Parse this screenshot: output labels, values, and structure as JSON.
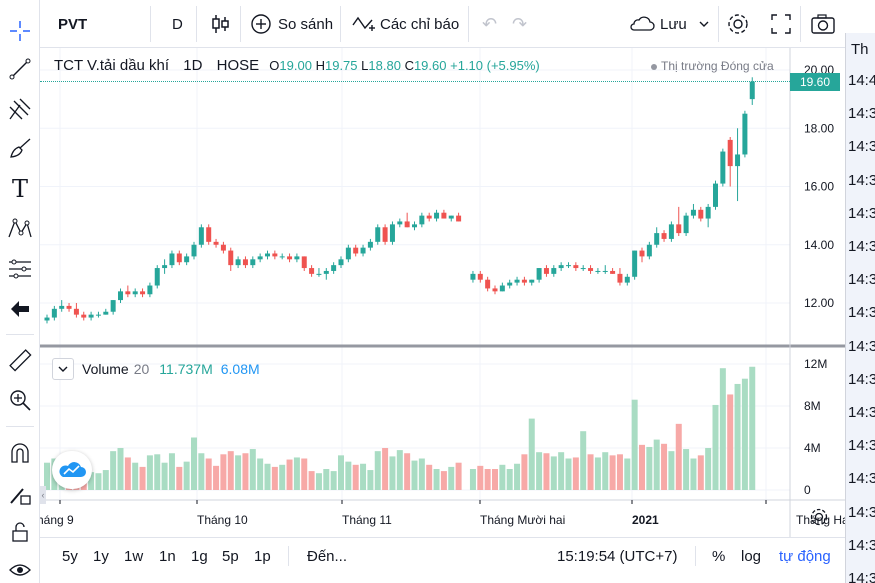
{
  "toolbar": {
    "symbol": "PVT",
    "interval": "D",
    "compare_label": "So sánh",
    "indicators_label": "Các chỉ báo",
    "save_label": "Lưu"
  },
  "legend": {
    "name": "TCT V.tải dầu khí",
    "interval": "1D",
    "exchange": "HOSE",
    "open_label": "O",
    "open": "19.00",
    "high_label": "H",
    "high": "19.75",
    "low_label": "L",
    "low": "18.80",
    "close_label": "C",
    "close": "19.60",
    "change": "+1.10 (+5.95%)",
    "market_status": "Thị trường Đóng cửa"
  },
  "volume_legend": {
    "label": "Volume",
    "length": "20",
    "value": "11.737M",
    "ma": "6.08M"
  },
  "last_price_label": "19.60",
  "price_axis": [
    "20.00",
    "18.00",
    "16.00",
    "14.00",
    "12.00"
  ],
  "volume_axis": [
    "12M",
    "8M",
    "4M",
    "0"
  ],
  "time_axis": [
    "háng 9",
    "Tháng 10",
    "Tháng 11",
    "Tháng Mười hai",
    "2021",
    "Tháng Hai"
  ],
  "bottom": {
    "ranges": [
      "5y",
      "1y",
      "1w",
      "1n",
      "1g",
      "5p",
      "1p"
    ],
    "goto": "Đến...",
    "clock": "15:19:54 (UTC+7)",
    "percent": "%",
    "log": "log",
    "auto": "tự động"
  },
  "right_panel": {
    "header": "Th",
    "times": [
      "14:4",
      "14:3",
      "14:3",
      "14:3",
      "14:3",
      "14:3",
      "14:3",
      "14:3",
      "14:3",
      "14:3",
      "14:3",
      "14:3",
      "14:3",
      "14:3",
      "14:3",
      "14:3"
    ]
  },
  "colors": {
    "up": "#26a69a",
    "down": "#ef5350",
    "vol_up": "#a9dcc3",
    "vol_down": "#f7a9a7",
    "accent": "#2962ff"
  },
  "chart_data": {
    "type": "candlestick",
    "price_range": [
      10.8,
      20.8
    ],
    "volume_range_m": [
      0,
      13
    ],
    "candles": [
      {
        "o": 11.4,
        "h": 11.6,
        "l": 11.3,
        "c": 11.5,
        "v": 2.6
      },
      {
        "o": 11.5,
        "h": 11.9,
        "l": 11.4,
        "c": 11.8,
        "v": 3.0
      },
      {
        "o": 11.8,
        "h": 12.1,
        "l": 11.7,
        "c": 11.9,
        "v": 2.8
      },
      {
        "o": 11.9,
        "h": 12.0,
        "l": 11.7,
        "c": 11.8,
        "v": 2.4
      },
      {
        "o": 11.8,
        "h": 12.0,
        "l": 11.5,
        "c": 11.6,
        "v": 1.9
      },
      {
        "o": 11.6,
        "h": 11.7,
        "l": 11.4,
        "c": 11.5,
        "v": 1.8
      },
      {
        "o": 11.5,
        "h": 11.7,
        "l": 11.4,
        "c": 11.6,
        "v": 1.7
      },
      {
        "o": 11.6,
        "h": 11.7,
        "l": 11.5,
        "c": 11.6,
        "v": 1.6
      },
      {
        "o": 11.6,
        "h": 11.8,
        "l": 11.6,
        "c": 11.7,
        "v": 1.9
      },
      {
        "o": 11.7,
        "h": 12.1,
        "l": 11.6,
        "c": 12.1,
        "v": 3.7
      },
      {
        "o": 12.1,
        "h": 12.5,
        "l": 12.0,
        "c": 12.4,
        "v": 4.0
      },
      {
        "o": 12.4,
        "h": 12.6,
        "l": 12.2,
        "c": 12.3,
        "v": 3.1
      },
      {
        "o": 12.3,
        "h": 12.5,
        "l": 12.2,
        "c": 12.4,
        "v": 2.6
      },
      {
        "o": 12.4,
        "h": 12.5,
        "l": 12.2,
        "c": 12.3,
        "v": 2.2
      },
      {
        "o": 12.3,
        "h": 12.7,
        "l": 12.2,
        "c": 12.6,
        "v": 3.3
      },
      {
        "o": 12.6,
        "h": 13.3,
        "l": 12.5,
        "c": 13.2,
        "v": 3.4
      },
      {
        "o": 13.2,
        "h": 13.5,
        "l": 13.0,
        "c": 13.3,
        "v": 2.6
      },
      {
        "o": 13.3,
        "h": 13.8,
        "l": 13.2,
        "c": 13.7,
        "v": 3.5
      },
      {
        "o": 13.7,
        "h": 13.8,
        "l": 13.3,
        "c": 13.4,
        "v": 2.2
      },
      {
        "o": 13.4,
        "h": 13.7,
        "l": 13.3,
        "c": 13.6,
        "v": 2.7
      },
      {
        "o": 13.6,
        "h": 14.1,
        "l": 13.5,
        "c": 14.0,
        "v": 5.0
      },
      {
        "o": 14.0,
        "h": 14.7,
        "l": 13.9,
        "c": 14.6,
        "v": 3.5
      },
      {
        "o": 14.6,
        "h": 14.7,
        "l": 14.0,
        "c": 14.1,
        "v": 3.0
      },
      {
        "o": 14.1,
        "h": 14.2,
        "l": 13.9,
        "c": 14.0,
        "v": 2.3
      },
      {
        "o": 14.0,
        "h": 14.1,
        "l": 13.7,
        "c": 13.8,
        "v": 3.4
      },
      {
        "o": 13.8,
        "h": 13.9,
        "l": 13.1,
        "c": 13.3,
        "v": 3.7
      },
      {
        "o": 13.3,
        "h": 13.6,
        "l": 13.2,
        "c": 13.5,
        "v": 3.3
      },
      {
        "o": 13.5,
        "h": 13.6,
        "l": 13.2,
        "c": 13.3,
        "v": 3.5
      },
      {
        "o": 13.3,
        "h": 13.6,
        "l": 13.2,
        "c": 13.5,
        "v": 3.9
      },
      {
        "o": 13.5,
        "h": 13.7,
        "l": 13.4,
        "c": 13.6,
        "v": 3.0
      },
      {
        "o": 13.6,
        "h": 13.8,
        "l": 13.5,
        "c": 13.7,
        "v": 2.5
      },
      {
        "o": 13.7,
        "h": 13.8,
        "l": 13.5,
        "c": 13.6,
        "v": 2.2
      },
      {
        "o": 13.6,
        "h": 13.7,
        "l": 13.5,
        "c": 13.6,
        "v": 2.4
      },
      {
        "o": 13.6,
        "h": 13.7,
        "l": 13.4,
        "c": 13.5,
        "v": 2.9
      },
      {
        "o": 13.5,
        "h": 13.7,
        "l": 13.4,
        "c": 13.6,
        "v": 3.1
      },
      {
        "o": 13.6,
        "h": 13.6,
        "l": 13.1,
        "c": 13.2,
        "v": 3.0
      },
      {
        "o": 13.2,
        "h": 13.3,
        "l": 12.9,
        "c": 13.0,
        "v": 1.8
      },
      {
        "o": 13.0,
        "h": 13.2,
        "l": 12.9,
        "c": 13.0,
        "v": 1.6
      },
      {
        "o": 13.0,
        "h": 13.2,
        "l": 12.8,
        "c": 13.1,
        "v": 2.0
      },
      {
        "o": 13.1,
        "h": 13.4,
        "l": 13.0,
        "c": 13.3,
        "v": 1.8
      },
      {
        "o": 13.3,
        "h": 13.6,
        "l": 13.2,
        "c": 13.5,
        "v": 3.3
      },
      {
        "o": 13.5,
        "h": 14.0,
        "l": 13.4,
        "c": 13.9,
        "v": 2.7
      },
      {
        "o": 13.9,
        "h": 14.0,
        "l": 13.6,
        "c": 13.7,
        "v": 2.4
      },
      {
        "o": 13.7,
        "h": 14.0,
        "l": 13.6,
        "c": 13.9,
        "v": 2.5
      },
      {
        "o": 13.9,
        "h": 14.2,
        "l": 13.8,
        "c": 14.1,
        "v": 1.9
      },
      {
        "o": 14.1,
        "h": 14.7,
        "l": 14.0,
        "c": 14.6,
        "v": 3.7
      },
      {
        "o": 14.6,
        "h": 14.7,
        "l": 14.0,
        "c": 14.1,
        "v": 4.0
      },
      {
        "o": 14.1,
        "h": 14.8,
        "l": 14.0,
        "c": 14.7,
        "v": 3.2
      },
      {
        "o": 14.7,
        "h": 14.9,
        "l": 14.6,
        "c": 14.8,
        "v": 3.8
      },
      {
        "o": 14.8,
        "h": 15.1,
        "l": 14.6,
        "c": 14.6,
        "v": 3.5
      },
      {
        "o": 14.6,
        "h": 14.8,
        "l": 14.5,
        "c": 14.7,
        "v": 2.8
      },
      {
        "o": 14.7,
        "h": 15.1,
        "l": 14.6,
        "c": 15.0,
        "v": 3.0
      },
      {
        "o": 15.0,
        "h": 15.1,
        "l": 14.8,
        "c": 14.9,
        "v": 2.4
      },
      {
        "o": 14.9,
        "h": 15.2,
        "l": 14.8,
        "c": 15.1,
        "v": 2.0
      },
      {
        "o": 15.1,
        "h": 15.2,
        "l": 14.9,
        "c": 14.9,
        "v": 1.8
      },
      {
        "o": 14.9,
        "h": 15.0,
        "l": 14.8,
        "c": 15.0,
        "v": 2.2
      },
      {
        "o": 15.0,
        "h": 15.1,
        "l": 14.8,
        "c": 14.8,
        "v": 2.6
      },
      {
        "gap": true
      },
      {
        "o": 12.8,
        "h": 13.1,
        "l": 12.7,
        "c": 13.0,
        "v": 2.0
      },
      {
        "o": 13.0,
        "h": 13.1,
        "l": 12.7,
        "c": 12.8,
        "v": 2.3
      },
      {
        "o": 12.8,
        "h": 12.9,
        "l": 12.4,
        "c": 12.5,
        "v": 2.0
      },
      {
        "o": 12.5,
        "h": 12.6,
        "l": 12.3,
        "c": 12.4,
        "v": 2.0
      },
      {
        "o": 12.4,
        "h": 12.7,
        "l": 12.4,
        "c": 12.6,
        "v": 2.4
      },
      {
        "o": 12.6,
        "h": 12.8,
        "l": 12.5,
        "c": 12.7,
        "v": 2.0
      },
      {
        "o": 12.7,
        "h": 12.9,
        "l": 12.6,
        "c": 12.8,
        "v": 2.5
      },
      {
        "o": 12.8,
        "h": 12.9,
        "l": 12.6,
        "c": 12.7,
        "v": 3.4
      },
      {
        "o": 12.7,
        "h": 12.8,
        "l": 12.6,
        "c": 12.8,
        "v": 6.8
      },
      {
        "o": 12.8,
        "h": 13.2,
        "l": 12.7,
        "c": 13.2,
        "v": 3.6
      },
      {
        "o": 13.2,
        "h": 13.3,
        "l": 12.9,
        "c": 13.0,
        "v": 3.5
      },
      {
        "o": 13.0,
        "h": 13.3,
        "l": 12.9,
        "c": 13.2,
        "v": 3.2
      },
      {
        "o": 13.2,
        "h": 13.4,
        "l": 13.1,
        "c": 13.3,
        "v": 3.6
      },
      {
        "o": 13.3,
        "h": 13.4,
        "l": 13.2,
        "c": 13.3,
        "v": 3.0
      },
      {
        "o": 13.3,
        "h": 13.4,
        "l": 13.1,
        "c": 13.2,
        "v": 3.1
      },
      {
        "o": 13.2,
        "h": 13.3,
        "l": 13.1,
        "c": 13.2,
        "v": 5.6
      },
      {
        "o": 13.2,
        "h": 13.3,
        "l": 13.0,
        "c": 13.1,
        "v": 3.4
      },
      {
        "o": 13.1,
        "h": 13.2,
        "l": 13.0,
        "c": 13.1,
        "v": 3.1
      },
      {
        "o": 13.1,
        "h": 13.3,
        "l": 13.0,
        "c": 13.1,
        "v": 3.6
      },
      {
        "o": 13.1,
        "h": 13.2,
        "l": 13.0,
        "c": 13.0,
        "v": 3.3
      },
      {
        "o": 13.0,
        "h": 13.2,
        "l": 12.6,
        "c": 12.7,
        "v": 3.4
      },
      {
        "o": 12.7,
        "h": 13.0,
        "l": 12.6,
        "c": 12.9,
        "v": 3.0
      },
      {
        "o": 12.9,
        "h": 13.8,
        "l": 12.8,
        "c": 13.8,
        "v": 8.6
      },
      {
        "o": 13.8,
        "h": 13.9,
        "l": 13.4,
        "c": 13.6,
        "v": 4.3
      },
      {
        "o": 13.6,
        "h": 14.1,
        "l": 13.5,
        "c": 14.0,
        "v": 4.1
      },
      {
        "o": 14.0,
        "h": 14.6,
        "l": 13.9,
        "c": 14.4,
        "v": 4.8
      },
      {
        "o": 14.4,
        "h": 14.5,
        "l": 14.1,
        "c": 14.2,
        "v": 4.4
      },
      {
        "o": 14.2,
        "h": 14.8,
        "l": 14.1,
        "c": 14.7,
        "v": 3.7
      },
      {
        "o": 14.7,
        "h": 15.3,
        "l": 14.3,
        "c": 14.4,
        "v": 6.3
      },
      {
        "o": 14.4,
        "h": 15.1,
        "l": 14.3,
        "c": 15.0,
        "v": 3.9
      },
      {
        "o": 15.0,
        "h": 15.4,
        "l": 14.9,
        "c": 15.2,
        "v": 3.0
      },
      {
        "o": 15.2,
        "h": 15.3,
        "l": 14.8,
        "c": 14.9,
        "v": 3.3
      },
      {
        "o": 14.9,
        "h": 15.4,
        "l": 14.6,
        "c": 15.3,
        "v": 4.0
      },
      {
        "o": 15.3,
        "h": 16.2,
        "l": 15.2,
        "c": 16.1,
        "v": 8.1
      },
      {
        "o": 16.1,
        "h": 17.3,
        "l": 16.0,
        "c": 17.2,
        "v": 11.6
      },
      {
        "o": 17.6,
        "h": 17.7,
        "l": 16.0,
        "c": 16.7,
        "v": 9.1
      },
      {
        "o": 16.7,
        "h": 18.0,
        "l": 15.5,
        "c": 17.1,
        "v": 10.1
      },
      {
        "o": 17.1,
        "h": 18.6,
        "l": 17.0,
        "c": 18.5,
        "v": 10.6
      },
      {
        "o": 19.0,
        "h": 19.75,
        "l": 18.8,
        "c": 19.6,
        "v": 11.737
      }
    ]
  }
}
